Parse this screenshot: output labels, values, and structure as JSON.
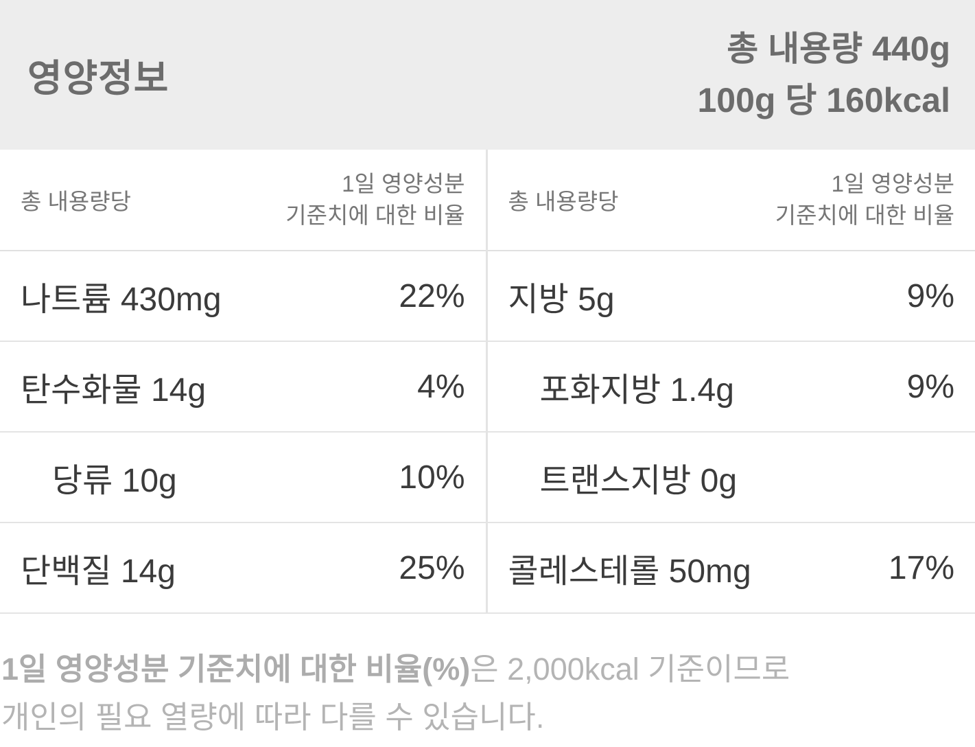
{
  "header": {
    "title": "영양정보",
    "total_amount": "총 내용량 440g",
    "per_amount_calories": "100g 당 160kcal"
  },
  "table": {
    "left": {
      "serving_header": "총 내용량당",
      "dv_header_line1": "1일 영양성분",
      "dv_header_line2": "기준치에 대한 비율",
      "rows": [
        {
          "name": "나트륨 430mg",
          "percent": "22%"
        },
        {
          "name": "탄수화물 14g",
          "percent": "4%"
        },
        {
          "name": "당류 10g",
          "percent": "10%"
        },
        {
          "name": "단백질 14g",
          "percent": "25%"
        }
      ]
    },
    "right": {
      "serving_header": "총 내용량당",
      "dv_header_line1": "1일 영양성분",
      "dv_header_line2": "기준치에 대한 비율",
      "rows": [
        {
          "name": "지방 5g",
          "percent": "9%"
        },
        {
          "name": "포화지방 1.4g",
          "percent": "9%"
        },
        {
          "name": "트랜스지방 0g",
          "percent": ""
        },
        {
          "name": "콜레스테롤 50mg",
          "percent": "17%"
        }
      ]
    }
  },
  "footnote": {
    "emphasis": "1일 영양성분 기준치에 대한 비율(%)",
    "text_rest": "은 2,000kcal 기준이므로",
    "line2": "개인의 필요 열량에 따라 다를 수 있습니다."
  },
  "colors": {
    "header_bg": "#EDEDED",
    "header_text": "#6C6C6C",
    "row_text": "#3B3B3B",
    "column_header_text": "#767676",
    "divider": "#E4E4E4",
    "footnote_text": "#B4B4B4"
  }
}
